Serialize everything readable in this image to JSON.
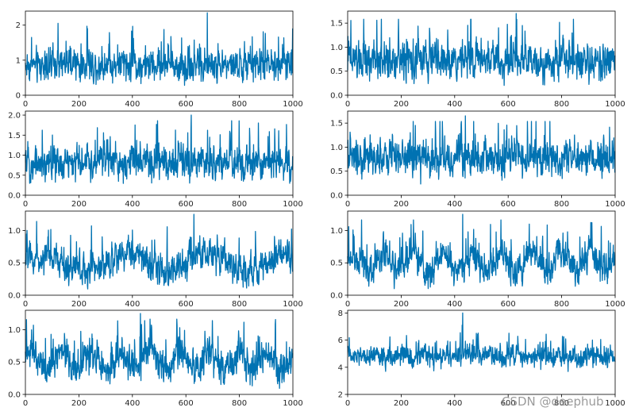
{
  "watermark": "CSDN @deephub",
  "colors": {
    "line": "#0072B2",
    "axes": "#000000",
    "tick_text": "#262626"
  },
  "chart_data": [
    {
      "type": "line",
      "row": 1,
      "col": 1,
      "n_points": 1000,
      "xlim": [
        0,
        1000
      ],
      "ylim": [
        0,
        2.4
      ],
      "xticks": [
        0,
        200,
        400,
        600,
        800,
        1000
      ],
      "yticks": [
        0,
        1,
        2
      ],
      "mean": 0.85,
      "amplitude": 0.55,
      "period": null,
      "peak_value": 2.35,
      "peak_at": 680
    },
    {
      "type": "line",
      "row": 1,
      "col": 2,
      "n_points": 1000,
      "xlim": [
        0,
        1000
      ],
      "ylim": [
        0,
        1.75
      ],
      "xticks": [
        0,
        200,
        400,
        600,
        800,
        1000
      ],
      "yticks": [
        0.0,
        0.5,
        1.0,
        1.5
      ],
      "mean": 0.72,
      "amplitude": 0.45,
      "period": null,
      "peak_value": 1.7,
      "peak_at": 630
    },
    {
      "type": "line",
      "row": 2,
      "col": 1,
      "n_points": 1000,
      "xlim": [
        0,
        1000
      ],
      "ylim": [
        0,
        2.1
      ],
      "xticks": [
        0,
        200,
        400,
        600,
        800,
        1000
      ],
      "yticks": [
        0.0,
        0.5,
        1.0,
        1.5,
        2.0
      ],
      "mean": 0.8,
      "amplitude": 0.5,
      "period": null,
      "peak_value": 2.0,
      "peak_at": 620
    },
    {
      "type": "line",
      "row": 2,
      "col": 2,
      "n_points": 1000,
      "xlim": [
        0,
        1000
      ],
      "ylim": [
        0,
        1.75
      ],
      "xticks": [
        0,
        200,
        400,
        600,
        800,
        1000
      ],
      "yticks": [
        0.0,
        0.5,
        1.0,
        1.5
      ],
      "mean": 0.75,
      "amplitude": 0.45,
      "period": null,
      "peak_value": 1.65,
      "peak_at": 440
    },
    {
      "type": "line",
      "row": 3,
      "col": 1,
      "n_points": 1000,
      "xlim": [
        0,
        1000
      ],
      "ylim": [
        0,
        1.3
      ],
      "xticks": [
        0,
        200,
        400,
        600,
        800,
        1000
      ],
      "yticks": [
        0.0,
        0.5,
        1.0
      ],
      "mean": 0.5,
      "amplitude": 0.3,
      "period": 300,
      "peak_value": 1.25,
      "peak_at": 630
    },
    {
      "type": "line",
      "row": 3,
      "col": 2,
      "n_points": 1000,
      "xlim": [
        0,
        1000
      ],
      "ylim": [
        0,
        1.3
      ],
      "xticks": [
        0,
        200,
        400,
        600,
        800,
        1000
      ],
      "yticks": [
        0.0,
        0.5,
        1.0
      ],
      "mean": 0.5,
      "amplitude": 0.3,
      "period": 110,
      "peak_value": 1.25,
      "peak_at": 430
    },
    {
      "type": "line",
      "row": 4,
      "col": 1,
      "n_points": 1000,
      "xlim": [
        0,
        1000
      ],
      "ylim": [
        0,
        1.3
      ],
      "xticks": [
        0,
        200,
        400,
        600,
        800,
        1000
      ],
      "yticks": [
        0.0,
        0.5,
        1.0
      ],
      "mean": 0.5,
      "amplitude": 0.3,
      "period": 110,
      "peak_value": 1.25,
      "peak_at": 430
    },
    {
      "type": "line",
      "row": 4,
      "col": 2,
      "n_points": 1000,
      "xlim": [
        0,
        1000
      ],
      "ylim": [
        2,
        8.2
      ],
      "xticks": [
        0,
        200,
        400,
        600,
        800,
        1000
      ],
      "yticks": [
        2,
        4,
        6,
        8
      ],
      "mean": 4.8,
      "amplitude": 0.9,
      "period": null,
      "peak_value": 8.0,
      "peak_at": 430
    }
  ]
}
